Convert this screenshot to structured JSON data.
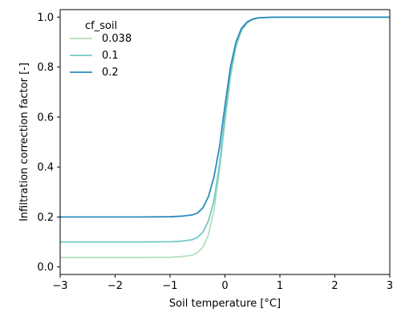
{
  "chart_data": {
    "type": "line",
    "xlabel": "Soil temperature [°C]",
    "ylabel": "Infiltration correction factor [-]",
    "xlim": [
      -3,
      3
    ],
    "ylim": [
      -0.03,
      1.03
    ],
    "xticks": [
      -3,
      -2,
      -1,
      0,
      1,
      2,
      3
    ],
    "xtick_labels": [
      "−3",
      "−2",
      "−1",
      "0",
      "1",
      "2",
      "3"
    ],
    "yticks": [
      0.0,
      0.2,
      0.4,
      0.6,
      0.8,
      1.0
    ],
    "ytick_labels": [
      "0.0",
      "0.2",
      "0.4",
      "0.6",
      "0.8",
      "1.0"
    ],
    "grid": false,
    "legend": {
      "title": "cf_soil",
      "placement": "upper-left"
    },
    "x": [
      -3.0,
      -2.0,
      -1.5,
      -1.0,
      -0.8,
      -0.6,
      -0.5,
      -0.4,
      -0.3,
      -0.2,
      -0.1,
      0.0,
      0.1,
      0.2,
      0.3,
      0.4,
      0.5,
      0.6,
      0.8,
      1.0,
      1.5,
      2.0,
      3.0
    ],
    "series": [
      {
        "name": "0.038",
        "color": "#b2e0bd",
        "values": [
          0.038,
          0.038,
          0.038,
          0.039,
          0.041,
          0.047,
          0.057,
          0.08,
          0.13,
          0.225,
          0.385,
          0.58,
          0.76,
          0.88,
          0.945,
          0.975,
          0.99,
          0.996,
          0.999,
          1.0,
          1.0,
          1.0,
          1.0
        ]
      },
      {
        "name": "0.1",
        "color": "#74c8c6",
        "values": [
          0.1,
          0.1,
          0.1,
          0.101,
          0.103,
          0.109,
          0.118,
          0.14,
          0.185,
          0.265,
          0.41,
          0.6,
          0.775,
          0.89,
          0.95,
          0.978,
          0.991,
          0.997,
          0.999,
          1.0,
          1.0,
          1.0,
          1.0
        ]
      },
      {
        "name": "0.2",
        "color": "#2b8cbe",
        "values": [
          0.2,
          0.2,
          0.2,
          0.201,
          0.203,
          0.208,
          0.216,
          0.237,
          0.282,
          0.36,
          0.48,
          0.645,
          0.8,
          0.9,
          0.955,
          0.98,
          0.992,
          0.997,
          0.999,
          1.0,
          1.0,
          1.0,
          1.0
        ]
      }
    ]
  }
}
